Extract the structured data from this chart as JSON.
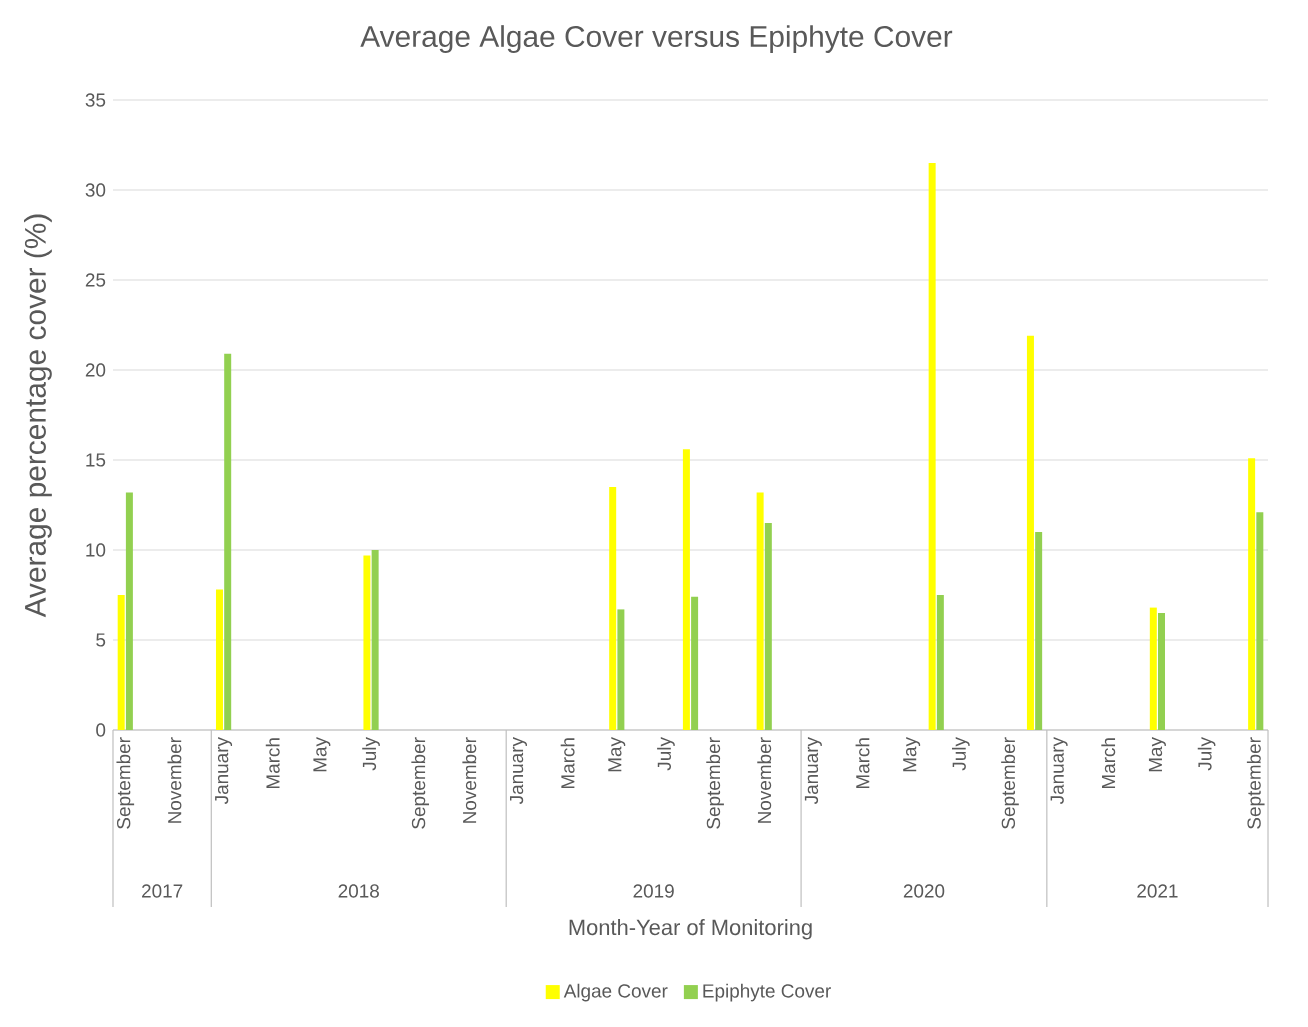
{
  "chart_data": {
    "type": "bar",
    "title": "Average Algae Cover versus Epiphyte Cover",
    "xlabel": "Month-Year of Monitoring",
    "ylabel": "Average percentage cover (%)",
    "categories": [
      "September",
      null,
      "November",
      null,
      "January",
      null,
      "March",
      null,
      "May",
      null,
      "July",
      null,
      "September",
      null,
      "November",
      null,
      "January",
      null,
      "March",
      null,
      "May",
      null,
      "July",
      null,
      "September",
      null,
      "November",
      null,
      "January",
      null,
      "March",
      null,
      "May",
      null,
      "July",
      null,
      "September",
      null,
      "January",
      null,
      "March",
      null,
      "May",
      null,
      "July",
      null,
      "September"
    ],
    "series": [
      {
        "name": "Algae Cover",
        "color": "#ffff00",
        "values": [
          7.5,
          null,
          null,
          null,
          7.8,
          null,
          null,
          null,
          null,
          null,
          9.7,
          null,
          null,
          null,
          null,
          null,
          null,
          null,
          null,
          null,
          13.5,
          null,
          null,
          15.6,
          null,
          null,
          13.2,
          null,
          null,
          null,
          null,
          null,
          null,
          31.5,
          null,
          null,
          null,
          21.9,
          null,
          null,
          null,
          null,
          6.8,
          null,
          null,
          null,
          15.1
        ]
      },
      {
        "name": "Epiphyte Cover",
        "color": "#92d050",
        "values": [
          13.2,
          null,
          null,
          null,
          20.9,
          null,
          null,
          null,
          null,
          null,
          10.0,
          null,
          null,
          null,
          null,
          null,
          null,
          null,
          null,
          null,
          6.7,
          null,
          null,
          7.4,
          null,
          null,
          11.5,
          null,
          null,
          null,
          null,
          null,
          null,
          7.5,
          null,
          null,
          null,
          11.0,
          null,
          null,
          null,
          null,
          6.5,
          null,
          null,
          null,
          12.1
        ]
      }
    ],
    "ylim": [
      0,
      35
    ],
    "yticks": [
      0,
      5,
      10,
      15,
      20,
      25,
      30,
      35
    ],
    "annotations": [
      "2017",
      "2018",
      "2019",
      "2020",
      "2021"
    ],
    "grid": "y",
    "legend": "bottom"
  }
}
